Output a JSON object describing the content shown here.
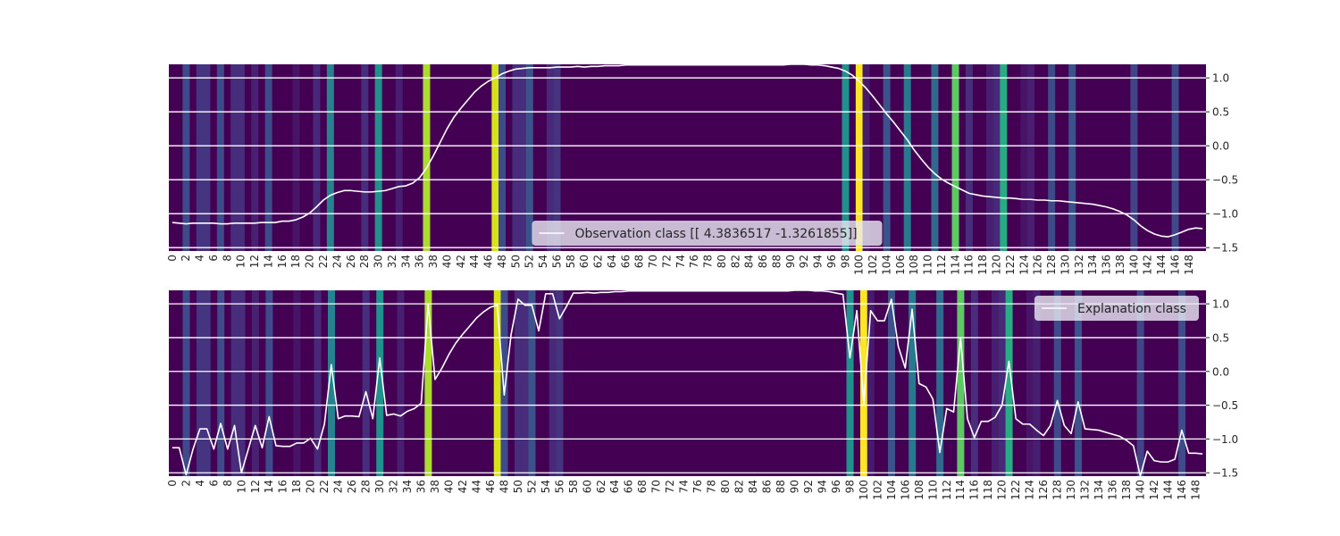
{
  "chart_data": [
    {
      "type": "line",
      "background": "heatmap",
      "legend": {
        "label": "Observation class [[ 4.3836517 -1.3261855]]",
        "placement": "lower-center"
      },
      "x": {
        "range": [
          0,
          149
        ],
        "tick_step": 2
      },
      "ylim": [
        -1.55,
        1.2
      ],
      "yticks": [
        1.0,
        0.5,
        0.0,
        -0.5,
        -1.0,
        -1.5
      ],
      "grid": true,
      "line_color": "#ffffff",
      "values": [
        -1.13,
        -1.14,
        -1.15,
        -1.14,
        -1.14,
        -1.14,
        -1.14,
        -1.15,
        -1.15,
        -1.14,
        -1.14,
        -1.14,
        -1.14,
        -1.13,
        -1.13,
        -1.13,
        -1.11,
        -1.11,
        -1.09,
        -1.05,
        -0.99,
        -0.9,
        -0.8,
        -0.73,
        -0.69,
        -0.66,
        -0.66,
        -0.67,
        -0.68,
        -0.68,
        -0.67,
        -0.66,
        -0.63,
        -0.6,
        -0.59,
        -0.55,
        -0.47,
        -0.33,
        -0.15,
        0.05,
        0.25,
        0.42,
        0.55,
        0.67,
        0.79,
        0.88,
        0.95,
        1.0,
        1.06,
        1.1,
        1.13,
        1.14,
        1.15,
        1.15,
        1.15,
        1.15,
        1.16,
        1.16,
        1.16,
        1.17,
        1.16,
        1.17,
        1.17,
        1.18,
        1.18,
        1.18,
        1.19,
        1.19,
        1.19,
        1.19,
        1.19,
        1.19,
        1.19,
        1.19,
        1.19,
        1.19,
        1.19,
        1.19,
        1.19,
        1.19,
        1.19,
        1.19,
        1.19,
        1.19,
        1.19,
        1.19,
        1.19,
        1.19,
        1.19,
        1.19,
        1.2,
        1.2,
        1.2,
        1.19,
        1.19,
        1.18,
        1.16,
        1.14,
        1.1,
        1.04,
        0.95,
        0.85,
        0.73,
        0.6,
        0.47,
        0.35,
        0.22,
        0.09,
        -0.06,
        -0.19,
        -0.31,
        -0.41,
        -0.49,
        -0.55,
        -0.6,
        -0.65,
        -0.7,
        -0.72,
        -0.74,
        -0.75,
        -0.76,
        -0.77,
        -0.77,
        -0.78,
        -0.79,
        -0.79,
        -0.8,
        -0.8,
        -0.81,
        -0.81,
        -0.82,
        -0.83,
        -0.84,
        -0.85,
        -0.86,
        -0.88,
        -0.9,
        -0.93,
        -0.97,
        -1.02,
        -1.09,
        -1.18,
        -1.25,
        -1.3,
        -1.33,
        -1.34,
        -1.31,
        -1.27,
        -1.23,
        -1.21,
        -1.22
      ]
    },
    {
      "type": "line",
      "background": "heatmap",
      "legend": {
        "label": "Explanation class",
        "placement": "upper-right"
      },
      "x": {
        "range": [
          0,
          149
        ],
        "tick_step": 2
      },
      "ylim": [
        -1.55,
        1.2
      ],
      "yticks": [
        1.0,
        0.5,
        0.0,
        -0.5,
        -1.0,
        -1.5
      ],
      "grid": true,
      "line_color": "#ffffff",
      "values": [
        -1.13,
        -1.13,
        -1.53,
        -1.15,
        -0.85,
        -0.85,
        -1.15,
        -0.77,
        -1.15,
        -0.8,
        -1.5,
        -1.15,
        -0.8,
        -1.13,
        -0.67,
        -1.1,
        -1.11,
        -1.11,
        -1.06,
        -1.06,
        -0.99,
        -1.15,
        -0.78,
        0.1,
        -0.7,
        -0.66,
        -0.66,
        -0.67,
        -0.3,
        -0.7,
        0.2,
        -0.65,
        -0.63,
        -0.66,
        -0.59,
        -0.55,
        -0.47,
        1.0,
        -0.12,
        0.05,
        0.25,
        0.42,
        0.55,
        0.67,
        0.79,
        0.88,
        0.95,
        0.98,
        -0.35,
        0.55,
        1.07,
        0.98,
        0.98,
        0.6,
        1.15,
        1.15,
        0.78,
        0.96,
        1.16,
        1.16,
        1.17,
        1.16,
        1.17,
        1.17,
        1.18,
        1.18,
        1.19,
        1.19,
        1.19,
        1.19,
        1.19,
        1.19,
        1.19,
        1.19,
        1.19,
        1.19,
        1.19,
        1.19,
        1.19,
        1.19,
        1.19,
        1.19,
        1.19,
        1.19,
        1.19,
        1.19,
        1.19,
        1.19,
        1.19,
        1.19,
        1.2,
        1.2,
        1.2,
        1.19,
        1.19,
        1.18,
        1.16,
        1.14,
        0.2,
        0.9,
        -0.48,
        0.9,
        0.75,
        0.75,
        1.07,
        0.37,
        0.05,
        0.92,
        -0.18,
        -0.23,
        -0.41,
        -1.2,
        -0.55,
        -0.6,
        0.5,
        -0.7,
        -0.98,
        -0.74,
        -0.74,
        -0.68,
        -0.5,
        0.15,
        -0.7,
        -0.78,
        -0.78,
        -0.87,
        -0.95,
        -0.8,
        -0.43,
        -0.8,
        -0.92,
        -0.45,
        -0.85,
        -0.86,
        -0.87,
        -0.9,
        -0.93,
        -0.96,
        -1.02,
        -1.1,
        -1.55,
        -1.18,
        -1.32,
        -1.34,
        -1.34,
        -1.3,
        -0.87,
        -1.21,
        -1.21,
        -1.22
      ]
    }
  ],
  "heatmap": {
    "colormap": "viridis",
    "base_color": "#440154",
    "stripes": [
      {
        "x": 2,
        "color": "#3e4a89"
      },
      {
        "x": 4,
        "color": "#453480"
      },
      {
        "x": 5,
        "color": "#453480"
      },
      {
        "x": 7,
        "color": "#3e4a89"
      },
      {
        "x": 9,
        "color": "#472d7b"
      },
      {
        "x": 10,
        "color": "#472d7b"
      },
      {
        "x": 12,
        "color": "#482173"
      },
      {
        "x": 14,
        "color": "#3e4a89"
      },
      {
        "x": 18,
        "color": "#481467"
      },
      {
        "x": 21,
        "color": "#482878"
      },
      {
        "x": 23,
        "color": "#26828e"
      },
      {
        "x": 28,
        "color": "#472d7b"
      },
      {
        "x": 30,
        "color": "#21918c"
      },
      {
        "x": 33,
        "color": "#481f70"
      },
      {
        "x": 37,
        "color": "#addc30"
      },
      {
        "x": 47,
        "color": "#d8e219"
      },
      {
        "x": 48,
        "color": "#3e4a89"
      },
      {
        "x": 50,
        "color": "#472d7b"
      },
      {
        "x": 51,
        "color": "#472d7b"
      },
      {
        "x": 52,
        "color": "#3b528b"
      },
      {
        "x": 55,
        "color": "#482878"
      },
      {
        "x": 56,
        "color": "#46337f"
      },
      {
        "x": 98,
        "color": "#21918c"
      },
      {
        "x": 100,
        "color": "#fde725"
      },
      {
        "x": 101,
        "color": "#481a6c"
      },
      {
        "x": 104,
        "color": "#3b528b"
      },
      {
        "x": 107,
        "color": "#29798e"
      },
      {
        "x": 111,
        "color": "#31688e"
      },
      {
        "x": 114,
        "color": "#5ec962"
      },
      {
        "x": 116,
        "color": "#472d7b"
      },
      {
        "x": 119,
        "color": "#481f70"
      },
      {
        "x": 120,
        "color": "#482878"
      },
      {
        "x": 121,
        "color": "#27ad81"
      },
      {
        "x": 124,
        "color": "#481467"
      },
      {
        "x": 125,
        "color": "#481f70"
      },
      {
        "x": 128,
        "color": "#3e4a89"
      },
      {
        "x": 131,
        "color": "#3b528b"
      },
      {
        "x": 140,
        "color": "#414487"
      },
      {
        "x": 146,
        "color": "#3e4a89"
      }
    ]
  }
}
